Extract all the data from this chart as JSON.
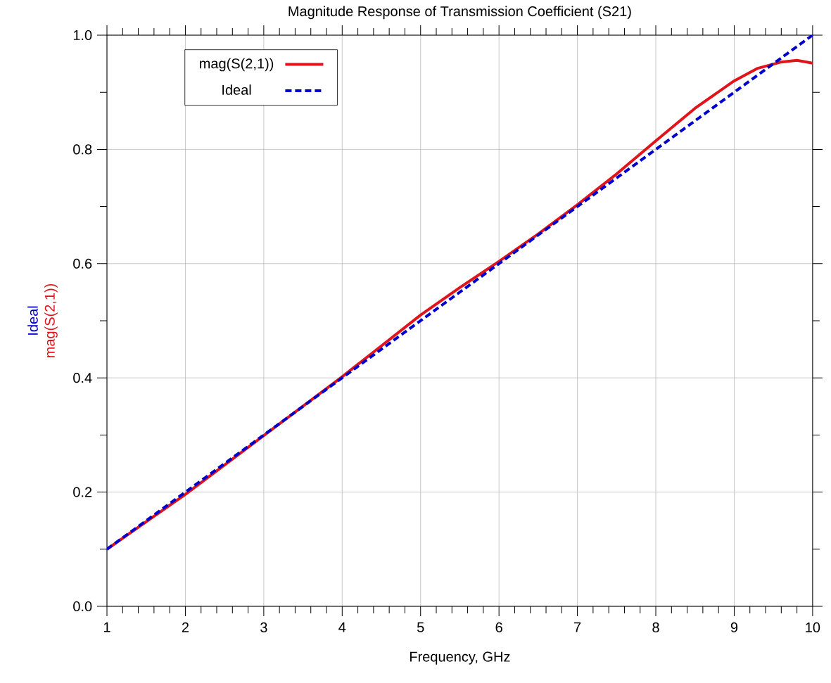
{
  "chart_data": {
    "type": "line",
    "title": "Magnitude Response of Transmission Coefficient (S21)",
    "xlabel": "Frequency, GHz",
    "xlim": [
      1,
      10
    ],
    "xticks": [
      1,
      2,
      3,
      4,
      5,
      6,
      7,
      8,
      9,
      10
    ],
    "ylim": [
      0,
      1.0
    ],
    "yticks": [
      {
        "value": 0,
        "label": "0.0"
      },
      {
        "value": 0.2,
        "label": "0.2"
      },
      {
        "value": 0.4,
        "label": "0.4"
      },
      {
        "value": 0.6,
        "label": "0.6"
      },
      {
        "value": 0.8,
        "label": "0.8"
      },
      {
        "value": 1.0,
        "label": "1.0"
      }
    ],
    "grid": true,
    "legend": "top left",
    "marker": "none",
    "series": [
      {
        "name": "mag(S(2,1))",
        "color": "#e0141c",
        "line_style": "solid",
        "x": [
          1,
          2,
          3,
          4,
          4.5,
          5,
          5.5,
          6,
          6.5,
          7,
          7.5,
          8,
          8.5,
          9,
          9.3,
          9.6,
          9.8,
          10
        ],
        "values": [
          0.1,
          0.196,
          0.299,
          0.402,
          0.456,
          0.51,
          0.558,
          0.604,
          0.652,
          0.703,
          0.757,
          0.815,
          0.872,
          0.92,
          0.942,
          0.953,
          0.956,
          0.951
        ]
      },
      {
        "name": "Ideal",
        "color": "#0000cc",
        "line_style": "dashed",
        "x": [
          1,
          2,
          3,
          4,
          5,
          6,
          7,
          8,
          9,
          10
        ],
        "values": [
          0.1,
          0.2,
          0.3,
          0.4,
          0.5,
          0.6,
          0.7,
          0.8,
          0.9,
          1.0
        ]
      }
    ]
  }
}
